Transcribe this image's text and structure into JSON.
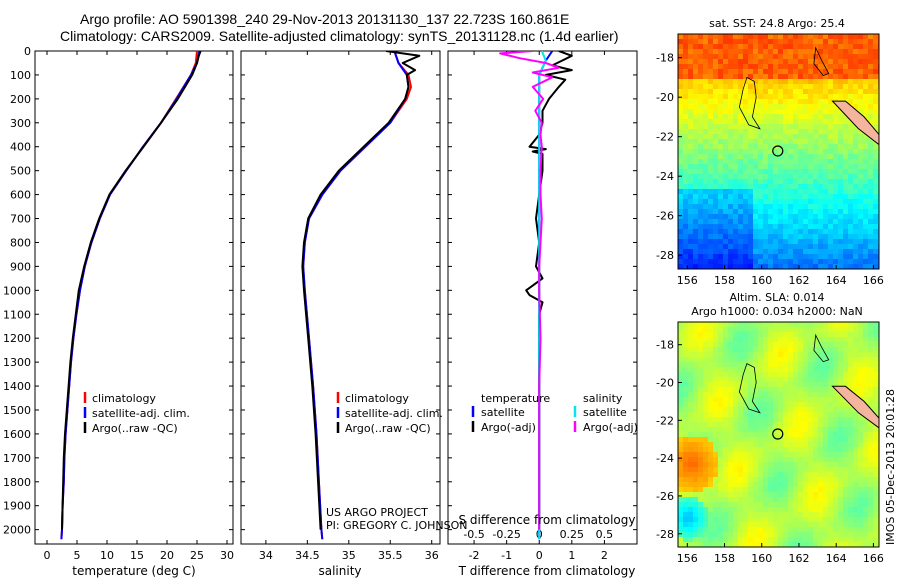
{
  "header": {
    "line1": "Argo profile: AO 5901398_240 29-Nov-2013 20131130_137 22.723S 160.861E",
    "line2": "Climatology: CARS2009. Satellite-adjusted climatology: synTS_20131128.nc (1.4d earlier)"
  },
  "side_label": "IMOS 05-Dec-2013 20:01:28",
  "credit": {
    "line1": "US ARGO PROJECT",
    "line2": "PI: GREGORY C. JOHNSON"
  },
  "colors": {
    "climatology": "#ff0000",
    "satellite_adj": "#0000ff",
    "argo": "#000000",
    "salinity_satellite": "#00e5ee",
    "salinity_argo": "#ff00ff"
  },
  "chart_data": [
    {
      "type": "line",
      "xlabel": "temperature (deg C)",
      "ylabel": "",
      "xlim": [
        -2,
        31
      ],
      "ylim": [
        2060,
        0
      ],
      "xticks": [
        0,
        5,
        10,
        15,
        20,
        25,
        30
      ],
      "yticks": [
        0,
        100,
        200,
        300,
        400,
        500,
        600,
        700,
        800,
        900,
        1000,
        1100,
        1200,
        1300,
        1400,
        1500,
        1600,
        1700,
        1800,
        1900,
        2000
      ],
      "legend": [
        "climatology",
        "satellite-adj. clim.",
        "Argo(..raw -QC)"
      ],
      "series": [
        {
          "name": "climatology",
          "color": "#ff0000",
          "depth": [
            0,
            50,
            100,
            200,
            300,
            400,
            500,
            600,
            700,
            800,
            900,
            1000,
            1100,
            1200,
            1300,
            1400,
            1500,
            1600,
            1700,
            1800,
            1900,
            2000,
            2040
          ],
          "values": [
            25.0,
            24.8,
            24.0,
            21.5,
            19.0,
            16.0,
            13.2,
            10.5,
            8.8,
            7.4,
            6.3,
            5.5,
            4.9,
            4.4,
            4.0,
            3.7,
            3.4,
            3.1,
            2.9,
            2.8,
            2.6,
            2.5,
            2.4
          ]
        },
        {
          "name": "satellite-adj. clim.",
          "color": "#0000ff",
          "depth": [
            0,
            50,
            100,
            200,
            300,
            400,
            500,
            600,
            700,
            800,
            900,
            1000,
            1100,
            1200,
            1300,
            1400,
            1500,
            1600,
            1700,
            1800,
            1900,
            2000,
            2040
          ],
          "values": [
            25.4,
            25.0,
            24.0,
            21.6,
            19.0,
            16.0,
            13.2,
            10.5,
            8.8,
            7.4,
            6.3,
            5.5,
            4.9,
            4.4,
            4.0,
            3.7,
            3.4,
            3.1,
            2.9,
            2.8,
            2.6,
            2.5,
            2.4
          ]
        },
        {
          "name": "Argo(..raw -QC)",
          "color": "#000000",
          "depth": [
            0,
            20,
            50,
            100,
            150,
            200,
            300,
            400,
            500,
            600,
            700,
            800,
            900,
            1000,
            1100,
            1200,
            1300,
            1400,
            1500,
            1600,
            1700,
            1800,
            1900,
            2000
          ],
          "values": [
            25.6,
            25.3,
            25.0,
            24.2,
            23.0,
            21.8,
            19.0,
            16.1,
            13.1,
            10.4,
            8.7,
            7.3,
            6.2,
            5.3,
            4.8,
            4.3,
            3.9,
            3.6,
            3.3,
            3.0,
            2.8,
            2.7,
            2.6,
            2.5
          ]
        }
      ]
    },
    {
      "type": "line",
      "xlabel": "salinity",
      "ylabel": "",
      "xlim": [
        33.7,
        36.1
      ],
      "ylim": [
        2060,
        0
      ],
      "xticks": [
        34,
        34.5,
        35,
        35.5,
        36
      ],
      "legend": [
        "climatology",
        "satellite-adj. clim.",
        "Argo(..raw -QC)"
      ],
      "series": [
        {
          "name": "climatology",
          "color": "#ff0000",
          "depth": [
            0,
            50,
            100,
            150,
            200,
            300,
            400,
            500,
            600,
            700,
            800,
            900,
            1000,
            1200,
            1400,
            1600,
            1800,
            2000,
            2040
          ],
          "values": [
            35.55,
            35.6,
            35.72,
            35.75,
            35.7,
            35.5,
            35.2,
            34.9,
            34.68,
            34.52,
            34.47,
            34.45,
            34.47,
            34.52,
            34.57,
            34.61,
            34.64,
            34.67,
            34.68
          ]
        },
        {
          "name": "satellite-adj. clim.",
          "color": "#0000ff",
          "depth": [
            0,
            50,
            100,
            150,
            200,
            300,
            400,
            500,
            600,
            700,
            800,
            900,
            1000,
            1200,
            1400,
            1600,
            1800,
            2000,
            2040
          ],
          "values": [
            35.55,
            35.6,
            35.7,
            35.72,
            35.68,
            35.5,
            35.2,
            34.9,
            34.68,
            34.52,
            34.47,
            34.45,
            34.47,
            34.52,
            34.57,
            34.61,
            34.64,
            34.67,
            34.68
          ]
        },
        {
          "name": "Argo(..raw -QC)",
          "color": "#000000",
          "depth": [
            0,
            20,
            50,
            80,
            100,
            150,
            200,
            300,
            400,
            500,
            600,
            700,
            800,
            900,
            1000,
            1200,
            1400,
            1600,
            1800,
            2000
          ],
          "values": [
            35.45,
            35.85,
            35.65,
            35.8,
            35.7,
            35.72,
            35.68,
            35.48,
            35.18,
            34.88,
            34.66,
            34.51,
            34.46,
            34.44,
            34.46,
            34.51,
            34.56,
            34.6,
            34.63,
            34.66
          ]
        }
      ]
    },
    {
      "type": "line",
      "xlabel": "T difference from climatology",
      "xlabel2": "S difference from climatology",
      "xlim": [
        -2.8,
        3.0
      ],
      "ylim": [
        2060,
        0
      ],
      "xticks": [
        -2,
        -1,
        0,
        1,
        2
      ],
      "xticks2": [
        "-0.5",
        "-0.25",
        "0",
        "0.25",
        "0.5"
      ],
      "legend_headers": [
        "temperature",
        "salinity"
      ],
      "legend": [
        "satellite",
        "Argo(-adj)",
        "satellite",
        "Argo(-adj)"
      ],
      "series": [
        {
          "name": "satellite",
          "group": "temperature",
          "color": "#0000ff",
          "depth": [
            0,
            40,
            100,
            2040
          ],
          "values": [
            0.4,
            0.2,
            0,
            0
          ]
        },
        {
          "name": "Argo(-adj)",
          "group": "temperature",
          "color": "#000000",
          "depth": [
            0,
            20,
            40,
            60,
            80,
            100,
            120,
            150,
            200,
            250,
            300,
            350,
            400,
            410,
            420,
            430,
            500,
            600,
            700,
            800,
            900,
            950,
            1000,
            1020,
            1050,
            1100,
            1200,
            1400,
            1600,
            1800,
            2000
          ],
          "values": [
            0.6,
            1.0,
            0.7,
            0.4,
            1.0,
            0.2,
            0.8,
            0.6,
            0.3,
            0.1,
            0.1,
            0,
            -0.3,
            0.2,
            -0.2,
            0.1,
            0.1,
            0,
            -0.1,
            0,
            -0.1,
            0.1,
            -0.4,
            -0.3,
            0.1,
            0,
            0,
            0,
            0,
            0,
            0
          ]
        },
        {
          "name": "satellite",
          "group": "salinity",
          "color": "#00e5ee",
          "depth": [
            0,
            40,
            100,
            2040
          ],
          "values": [
            0.02,
            0.05,
            0,
            0
          ]
        },
        {
          "name": "Argo(-adj)",
          "group": "salinity",
          "color": "#ff00ff",
          "depth": [
            0,
            10,
            30,
            50,
            70,
            90,
            110,
            150,
            200,
            250,
            300,
            350,
            400,
            500,
            600,
            700,
            800,
            900,
            1000,
            1200,
            1400,
            1600,
            1800,
            2000
          ],
          "values": [
            -0.05,
            -0.3,
            -0.15,
            0.05,
            0.15,
            -0.05,
            0.1,
            -0.05,
            0.03,
            -0.03,
            0.02,
            0.01,
            0.02,
            0.01,
            0.01,
            0.02,
            0.01,
            0,
            0,
            0.01,
            0,
            0,
            0,
            0
          ]
        }
      ]
    },
    {
      "type": "heatmap",
      "title": "sat. SST: 24.8 Argo: 25.4",
      "xlim": [
        155.5,
        166.3
      ],
      "ylim": [
        -28.7,
        -16.8
      ],
      "xticks": [
        156,
        158,
        160,
        162,
        164,
        166
      ],
      "yticks": [
        -18,
        -20,
        -22,
        -24,
        -26,
        -28
      ],
      "argo_position": {
        "lon": 160.861,
        "lat": -22.723
      }
    },
    {
      "type": "heatmap",
      "title": "Altim. SLA: 0.014",
      "subtitle": "Argo h1000: 0.034 h2000: NaN",
      "xlim": [
        155.5,
        166.3
      ],
      "ylim": [
        -28.7,
        -16.8
      ],
      "xticks": [
        156,
        158,
        160,
        162,
        164,
        166
      ],
      "yticks": [
        -18,
        -20,
        -22,
        -24,
        -26,
        -28
      ],
      "argo_position": {
        "lon": 160.861,
        "lat": -22.723
      }
    }
  ]
}
